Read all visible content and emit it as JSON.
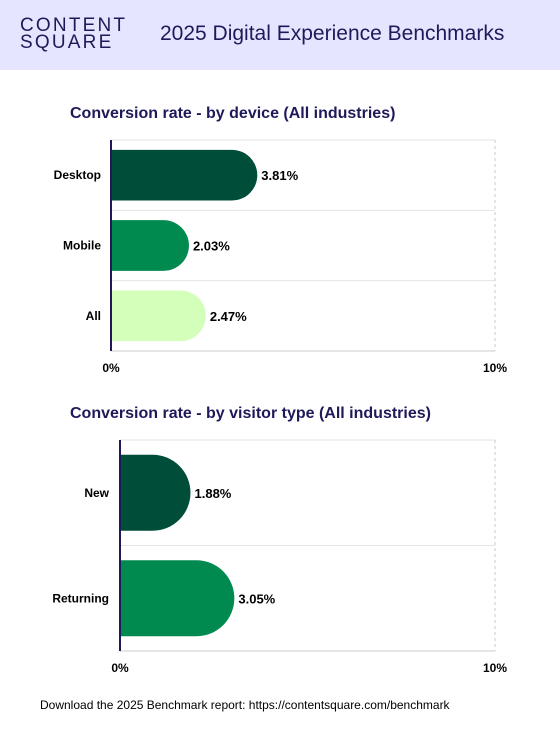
{
  "header": {
    "logo_line1": "CONTENT",
    "logo_line2": "SQUARE",
    "title": "2025 Digital Experience Benchmarks"
  },
  "footer": {
    "text": "Download the 2025 Benchmark report: https://contentsquare.com/benchmark"
  },
  "chart_data": [
    {
      "type": "bar",
      "orientation": "horizontal",
      "title": "Conversion rate - by device (All industries)",
      "categories": [
        "Desktop",
        "Mobile",
        "All"
      ],
      "values": [
        3.81,
        2.03,
        2.47
      ],
      "value_labels": [
        "3.81%",
        "2.03%",
        "2.47%"
      ],
      "colors": [
        "#004d3a",
        "#008a50",
        "#d4ffba"
      ],
      "xlim": [
        0,
        10
      ],
      "x_ticks": [
        "0%",
        "10%"
      ],
      "grid": true
    },
    {
      "type": "bar",
      "orientation": "horizontal",
      "title": "Conversion rate - by visitor type (All industries)",
      "categories": [
        "New",
        "Returning"
      ],
      "values": [
        1.88,
        3.05
      ],
      "value_labels": [
        "1.88%",
        "3.05%"
      ],
      "colors": [
        "#004d3a",
        "#008a50"
      ],
      "xlim": [
        0,
        10
      ],
      "x_ticks": [
        "0%",
        "10%"
      ],
      "grid": true
    }
  ]
}
